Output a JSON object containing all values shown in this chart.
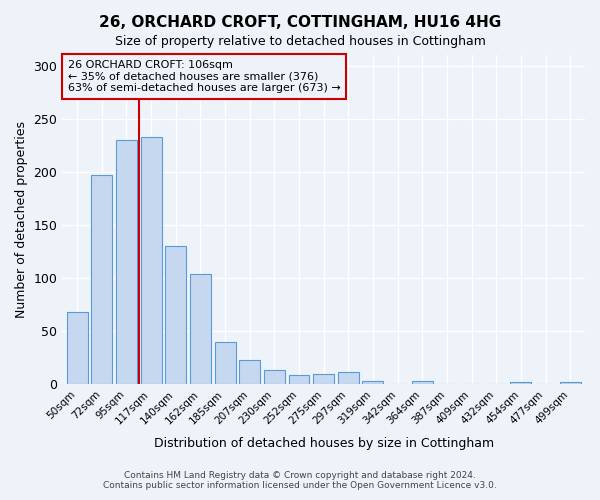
{
  "title": "26, ORCHARD CROFT, COTTINGHAM, HU16 4HG",
  "subtitle": "Size of property relative to detached houses in Cottingham",
  "xlabel": "Distribution of detached houses by size in Cottingham",
  "ylabel": "Number of detached properties",
  "bar_color": "#c5d8f0",
  "bar_edge_color": "#5b9bd5",
  "background_color": "#eef3f9",
  "grid_color": "#ffffff",
  "categories": [
    "50sqm",
    "72sqm",
    "95sqm",
    "117sqm",
    "140sqm",
    "162sqm",
    "185sqm",
    "207sqm",
    "230sqm",
    "252sqm",
    "275sqm",
    "297sqm",
    "319sqm",
    "342sqm",
    "364sqm",
    "387sqm",
    "409sqm",
    "432sqm",
    "454sqm",
    "477sqm",
    "499sqm"
  ],
  "values": [
    68,
    197,
    230,
    233,
    130,
    104,
    40,
    23,
    13,
    9,
    10,
    11,
    3,
    0,
    3,
    0,
    0,
    0,
    2,
    0,
    2
  ],
  "ylim": [
    0,
    310
  ],
  "yticks": [
    0,
    50,
    100,
    150,
    200,
    250,
    300
  ],
  "marker_color": "#cc0000",
  "annotation_title": "26 ORCHARD CROFT: 106sqm",
  "annotation_line1": "← 35% of detached houses are smaller (376)",
  "annotation_line2": "63% of semi-detached houses are larger (673) →",
  "annotation_box_color": "#cc0000",
  "footer1": "Contains HM Land Registry data © Crown copyright and database right 2024.",
  "footer2": "Contains public sector information licensed under the Open Government Licence v3.0."
}
